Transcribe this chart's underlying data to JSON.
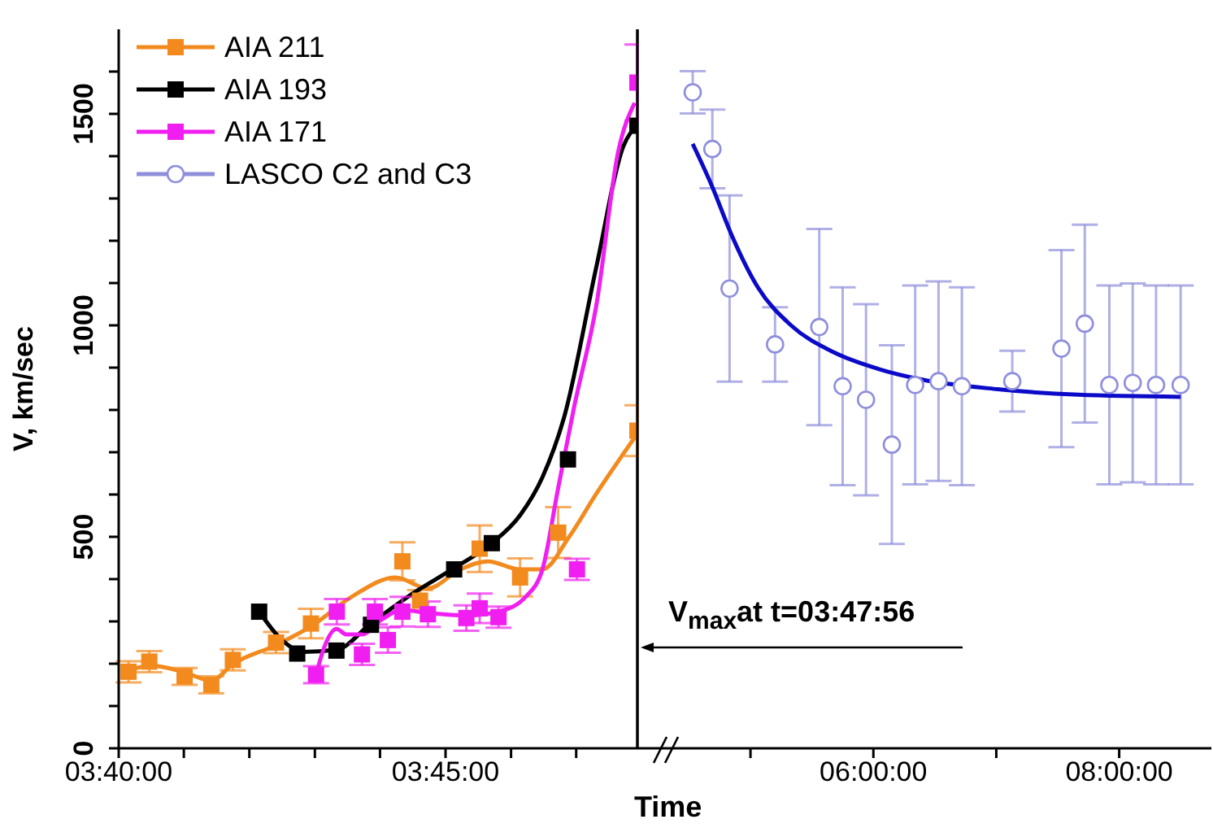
{
  "chart_data": [
    {
      "type": "scatter",
      "ylabel": "V, km/sec",
      "xlabel": "Time",
      "xlim": [
        3.6667,
        3.7989
      ],
      "xticks": [
        {
          "value": 3.6667,
          "label": "03:40:00"
        },
        {
          "value": 3.6833,
          "label": null
        },
        {
          "value": 3.7,
          "label": null
        },
        {
          "value": 3.7167,
          "label": null
        },
        {
          "value": 3.7333,
          "label": null
        },
        {
          "value": 3.75,
          "label": "03:45:00"
        },
        {
          "value": 3.7667,
          "label": null
        },
        {
          "value": 3.7833,
          "label": null
        }
      ],
      "ylim": [
        0,
        1700
      ],
      "yticks": [
        0,
        {
          "value": 100,
          "label": null
        },
        {
          "value": 200,
          "label": null
        },
        {
          "value": 300,
          "label": null
        },
        {
          "value": 400,
          "label": null
        },
        500,
        {
          "value": 600,
          "label": null
        },
        {
          "value": 700,
          "label": null
        },
        {
          "value": 800,
          "label": null
        },
        {
          "value": 900,
          "label": null
        },
        1000,
        {
          "value": 1100,
          "label": null
        },
        {
          "value": 1200,
          "label": null
        },
        {
          "value": 1300,
          "label": null
        },
        {
          "value": 1400,
          "label": null
        },
        1500,
        {
          "value": 1600,
          "label": null
        }
      ],
      "legend": "top left",
      "ref_lines": [
        {
          "axis": "x",
          "value": 3.7989,
          "color": "#000000"
        }
      ],
      "annotations": [
        "V$_{max}$at t=03:47:56"
      ],
      "series": [
        {
          "name": "AIA 211",
          "marker": "square",
          "color": "#f28a1e",
          "x": [
            3.6692,
            3.6745,
            3.6835,
            3.6903,
            3.6958,
            3.7068,
            3.7157,
            3.739,
            3.7435,
            3.7587,
            3.769,
            3.7787,
            3.7989
          ],
          "values": [
            181,
            205,
            170,
            150,
            209,
            250,
            295,
            442,
            349,
            472,
            404,
            510,
            751
          ],
          "errors": [
            25,
            25,
            20,
            20,
            25,
            25,
            35,
            45,
            25,
            55,
            45,
            60,
            60
          ]
        },
        {
          "type": "line",
          "color": "#f28a1e",
          "x": [
            3.6675,
            3.6752,
            3.6833,
            3.6903,
            3.6958,
            3.7068,
            3.7157,
            3.7262,
            3.7373,
            3.7455,
            3.7538,
            3.7608,
            3.769,
            3.7747,
            3.7815,
            3.7885,
            3.7989
          ],
          "values": [
            180,
            195,
            180,
            160,
            199,
            244,
            288,
            359,
            404,
            378,
            423,
            442,
            423,
            423,
            500,
            603,
            744
          ]
        },
        {
          "name": "AIA 193",
          "marker": "square",
          "color": "#000000",
          "x": [
            3.7025,
            3.7122,
            3.7222,
            3.731,
            3.7522,
            3.7618,
            3.7812,
            3.7989
          ],
          "values": [
            323,
            224,
            231,
            292,
            423,
            485,
            683,
            1472
          ]
        },
        {
          "type": "line",
          "color": "#000000",
          "x": [
            3.7025,
            3.7083,
            3.7138,
            3.7222,
            3.731,
            3.7415,
            3.7522,
            3.7618,
            3.769,
            3.7747,
            3.7802,
            3.7885,
            3.7953,
            3.7988
          ],
          "values": [
            323,
            256,
            228,
            233,
            295,
            365,
            426,
            485,
            551,
            641,
            782,
            1141,
            1423,
            1472
          ]
        },
        {
          "name": "AIA 171",
          "marker": "square",
          "color": "#f01ef0",
          "x": [
            3.717,
            3.7223,
            3.7287,
            3.732,
            3.7353,
            3.739,
            3.7455,
            3.7553,
            3.7587,
            3.7635,
            3.7835,
            3.7989
          ],
          "values": [
            174,
            323,
            222,
            323,
            256,
            323,
            317,
            308,
            331,
            310,
            423,
            1574
          ],
          "errors": [
            20,
            30,
            25,
            30,
            30,
            35,
            30,
            30,
            35,
            25,
            25,
            90
          ]
        },
        {
          "type": "line",
          "color": "#f01ef0",
          "x": [
            3.717,
            3.7193,
            3.7222,
            3.7248,
            3.7287,
            3.7332,
            3.739,
            3.7455,
            3.7553,
            3.7635,
            3.7705,
            3.7747,
            3.7787,
            3.7828,
            3.7885,
            3.794,
            3.7982
          ],
          "values": [
            174,
            244,
            282,
            269,
            269,
            301,
            327,
            320,
            314,
            323,
            359,
            423,
            615,
            808,
            1051,
            1410,
            1526
          ]
        }
      ]
    },
    {
      "type": "scatter",
      "xlim": [
        4.08,
        8.75
      ],
      "xticks": [
        {
          "value": 5,
          "label": null
        },
        {
          "value": 6,
          "label": "06:00:00"
        },
        {
          "value": 7,
          "label": null
        },
        {
          "value": 8,
          "label": "08:00:00"
        }
      ],
      "ylim": [
        0,
        1700
      ],
      "yticks": [
        0,
        {
          "value": 100,
          "label": null
        },
        {
          "value": 200,
          "label": null
        },
        {
          "value": 300,
          "label": null
        },
        {
          "value": 400,
          "label": null
        },
        500,
        {
          "value": 600,
          "label": null
        },
        {
          "value": 700,
          "label": null
        },
        {
          "value": 800,
          "label": null
        },
        {
          "value": 900,
          "label": null
        },
        1000,
        {
          "value": 1100,
          "label": null
        },
        {
          "value": 1200,
          "label": null
        },
        {
          "value": 1300,
          "label": null
        },
        {
          "value": 1400,
          "label": null
        },
        1500,
        {
          "value": 1600,
          "label": null
        }
      ],
      "tick_labels": "x",
      "series": [
        {
          "name": "LASCO C2 and C3",
          "marker": "circle",
          "color": "#8e8edc",
          "x": [
            4.53,
            4.69,
            4.83,
            5.2,
            5.56,
            5.75,
            5.94,
            6.15,
            6.34,
            6.53,
            6.72,
            7.13,
            7.53,
            7.72,
            7.92,
            8.11,
            8.3,
            8.5
          ],
          "values": [
            1551,
            1417,
            1087,
            955,
            996,
            856,
            824,
            718,
            859,
            868,
            856,
            868,
            945,
            1004,
            859,
            864,
            859,
            859
          ],
          "errors": [
            50,
            93,
            220,
            88,
            232,
            234,
            226,
            235,
            235,
            236,
            234,
            72,
            233,
            234,
            235,
            235,
            235,
            235
          ]
        },
        {
          "type": "line",
          "color": "#0a0ac8",
          "x": [
            4.53,
            4.69,
            4.84,
            5.06,
            5.33,
            5.68,
            6.04,
            6.39,
            7.01,
            7.67,
            8.5
          ],
          "values": [
            1429,
            1327,
            1218,
            1090,
            1000,
            936,
            897,
            872,
            849,
            836,
            831
          ]
        }
      ]
    }
  ]
}
